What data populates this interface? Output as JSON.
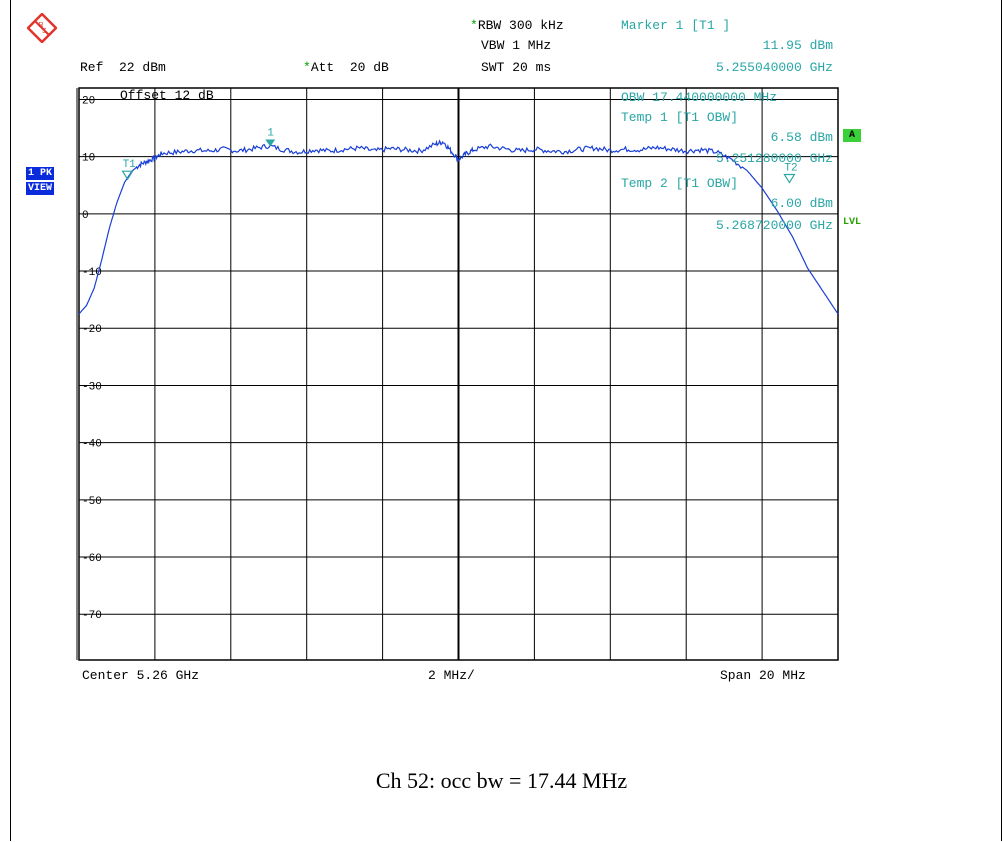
{
  "header": {
    "rbw": "RBW 300 kHz",
    "vbw": "VBW 1 MHz",
    "swt": "SWT 20 ms",
    "ref": "Ref  22 dBm",
    "att": "Att  20 dB",
    "star": "*"
  },
  "marker": {
    "title": "Marker 1 [T1 ]",
    "level": "11.95 dBm",
    "freq": "5.255040000 GHz",
    "label": "1"
  },
  "overlay": {
    "obw": "OBW 17.440000000 MHz",
    "temp1_title": "Temp 1 [T1 OBW]",
    "temp1_level": "6.58 dBm",
    "temp1_freq": "5.251280000 GHz",
    "temp2_title": "Temp 2 [T1 OBW]",
    "temp2_level": "6.00 dBm",
    "temp2_freq": "5.268720000 GHz",
    "t1": "T1",
    "t2": "T2"
  },
  "side": {
    "badge1": "1 PK",
    "badge2": "VIEW",
    "a_badge": "A",
    "lvl": "LVL"
  },
  "footer": {
    "center": "Center 5.26 GHz",
    "div": "2 MHz/",
    "span": "Span 20 MHz"
  },
  "offset_label": "Offset  12 dB",
  "caption": "Ch 52: occ bw = 17.44 MHz",
  "colors": {
    "trace": "#1a3fd6",
    "marker": "#2aa6a6",
    "grid": "#000000"
  },
  "chart_data": {
    "type": "line",
    "xlim": [
      5.25,
      5.27
    ],
    "ylim": [
      -78,
      22
    ],
    "yticks": [
      20,
      10,
      0,
      -10,
      -20,
      -30,
      -40,
      -50,
      -60,
      -70
    ],
    "grid": true,
    "x_unit": "GHz",
    "y_unit": "dBm",
    "series": [
      {
        "values": [
          [
            5.25,
            -17.5
          ],
          [
            5.2502,
            -16.0
          ],
          [
            5.2504,
            -13.0
          ],
          [
            5.2506,
            -8.0
          ],
          [
            5.2508,
            -2.5
          ],
          [
            5.251,
            2.0
          ],
          [
            5.2512,
            5.5
          ],
          [
            5.2514,
            7.5
          ],
          [
            5.2516,
            8.6
          ],
          [
            5.2518,
            9.2
          ],
          [
            5.252,
            9.8
          ],
          [
            5.2522,
            10.6
          ],
          [
            5.2526,
            10.8
          ],
          [
            5.253,
            11.1
          ],
          [
            5.2534,
            11.0
          ],
          [
            5.2538,
            11.3
          ],
          [
            5.2542,
            11.0
          ],
          [
            5.2546,
            11.4
          ],
          [
            5.255,
            11.9
          ],
          [
            5.2554,
            11.2
          ],
          [
            5.2558,
            10.8
          ],
          [
            5.2562,
            11.2
          ],
          [
            5.2566,
            11.0
          ],
          [
            5.257,
            11.3
          ],
          [
            5.2574,
            11.5
          ],
          [
            5.2578,
            11.0
          ],
          [
            5.2582,
            11.4
          ],
          [
            5.2586,
            11.2
          ],
          [
            5.259,
            11.0
          ],
          [
            5.2594,
            12.2
          ],
          [
            5.2596,
            12.6
          ],
          [
            5.2598,
            11.0
          ],
          [
            5.26,
            9.5
          ],
          [
            5.2602,
            10.5
          ],
          [
            5.2604,
            11.2
          ],
          [
            5.2608,
            11.8
          ],
          [
            5.2612,
            11.4
          ],
          [
            5.2616,
            11.0
          ],
          [
            5.262,
            11.3
          ],
          [
            5.2624,
            11.0
          ],
          [
            5.2628,
            10.9
          ],
          [
            5.2632,
            11.3
          ],
          [
            5.2636,
            11.5
          ],
          [
            5.264,
            11.1
          ],
          [
            5.2644,
            11.3
          ],
          [
            5.2648,
            11.2
          ],
          [
            5.2652,
            11.6
          ],
          [
            5.2656,
            11.3
          ],
          [
            5.266,
            11.0
          ],
          [
            5.2664,
            11.2
          ],
          [
            5.2668,
            10.8
          ],
          [
            5.2672,
            9.5
          ],
          [
            5.2676,
            7.6
          ],
          [
            5.268,
            4.5
          ],
          [
            5.2684,
            0.5
          ],
          [
            5.2688,
            -4.0
          ],
          [
            5.2692,
            -9.5
          ],
          [
            5.2696,
            -13.5
          ],
          [
            5.27,
            -17.5
          ]
        ]
      }
    ],
    "markers": [
      {
        "name": "1",
        "x": 5.25504,
        "y": 11.95
      },
      {
        "name": "T1",
        "x": 5.25128,
        "y": 6.58
      },
      {
        "name": "T2",
        "x": 5.26872,
        "y": 6.0
      }
    ]
  }
}
